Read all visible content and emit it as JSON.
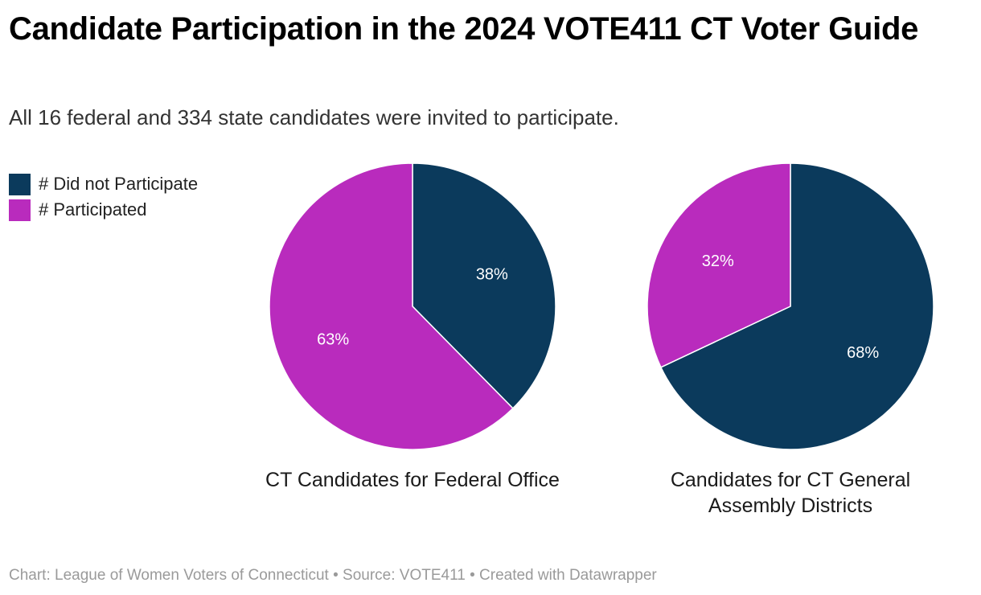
{
  "title": "Candidate Participation in the 2024 VOTE411 CT Voter Guide",
  "subtitle": "All 16 federal and 334 state candidates were invited to participate.",
  "legend": [
    {
      "label": "# Did not Participate",
      "color": "#0b3a5c"
    },
    {
      "label": "# Participated",
      "color": "#b92bbd"
    }
  ],
  "chart_data": [
    {
      "type": "pie",
      "title": "CT Candidates for Federal Office",
      "slices": [
        {
          "label": "# Did not Participate",
          "value": 38,
          "display": "38%",
          "color": "#0b3a5c"
        },
        {
          "label": "# Participated",
          "value": 63,
          "display": "63%",
          "color": "#b92bbd"
        }
      ]
    },
    {
      "type": "pie",
      "title": "Candidates for CT General Assembly Districts",
      "slices": [
        {
          "label": "# Did not Participate",
          "value": 68,
          "display": "68%",
          "color": "#0b3a5c"
        },
        {
          "label": "# Participated",
          "value": 32,
          "display": "32%",
          "color": "#b92bbd"
        }
      ]
    }
  ],
  "footer": "Chart: League of Women Voters of Connecticut • Source: VOTE411 • Created with Datawrapper"
}
